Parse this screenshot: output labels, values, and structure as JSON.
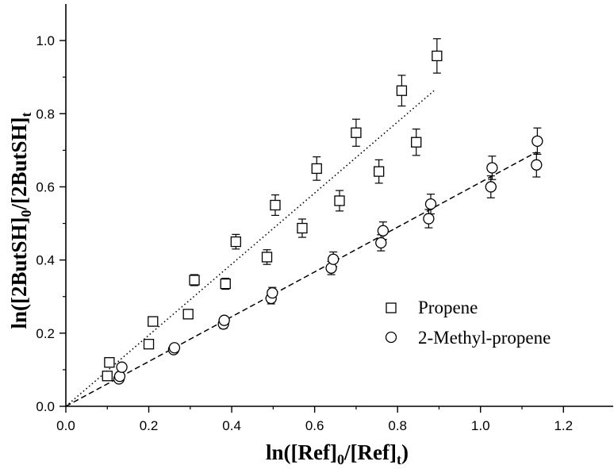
{
  "chart_data": {
    "type": "scatter",
    "xlabel": {
      "main": "ln([Ref]",
      "sub1": "0",
      "mid": "/[Ref]",
      "sub2": "t",
      "end": ")"
    },
    "ylabel": {
      "main": "ln([2ButSH]",
      "sub1": "0",
      "mid": "/[2ButSH]",
      "sub2": "t",
      "end": ""
    },
    "xlim": [
      0.0,
      1.32
    ],
    "ylim": [
      0.0,
      1.1
    ],
    "xticks": [
      "0.0",
      "0.2",
      "0.4",
      "0.6",
      "0.8",
      "1.0",
      "1.2"
    ],
    "yticks": [
      "0.0",
      "0.2",
      "0.4",
      "0.6",
      "0.8",
      "1.0"
    ],
    "grid": false,
    "legend_position": "right",
    "series": [
      {
        "name": "Propene",
        "marker": "square",
        "fit_line": "dotted",
        "fit": {
          "x": [
            0.0,
            0.89
          ],
          "y": [
            0.0,
            0.865
          ]
        },
        "points": [
          {
            "x": 0.1,
            "y": 0.083,
            "err": 0.012
          },
          {
            "x": 0.105,
            "y": 0.12,
            "err": 0.008
          },
          {
            "x": 0.2,
            "y": 0.17,
            "err": 0.0
          },
          {
            "x": 0.21,
            "y": 0.232,
            "err": 0.0
          },
          {
            "x": 0.295,
            "y": 0.252,
            "err": 0.0
          },
          {
            "x": 0.31,
            "y": 0.345,
            "err": 0.015
          },
          {
            "x": 0.385,
            "y": 0.335,
            "err": 0.015
          },
          {
            "x": 0.41,
            "y": 0.45,
            "err": 0.02
          },
          {
            "x": 0.485,
            "y": 0.408,
            "err": 0.02
          },
          {
            "x": 0.505,
            "y": 0.55,
            "err": 0.028
          },
          {
            "x": 0.57,
            "y": 0.487,
            "err": 0.025
          },
          {
            "x": 0.605,
            "y": 0.65,
            "err": 0.032
          },
          {
            "x": 0.66,
            "y": 0.562,
            "err": 0.028
          },
          {
            "x": 0.7,
            "y": 0.748,
            "err": 0.037
          },
          {
            "x": 0.755,
            "y": 0.642,
            "err": 0.032
          },
          {
            "x": 0.81,
            "y": 0.863,
            "err": 0.042
          },
          {
            "x": 0.845,
            "y": 0.722,
            "err": 0.036
          },
          {
            "x": 0.895,
            "y": 0.958,
            "err": 0.047
          }
        ]
      },
      {
        "name": "2-Methyl-propene",
        "marker": "circle",
        "fit_line": "dashed",
        "fit": {
          "x": [
            0.0,
            1.135
          ],
          "y": [
            0.0,
            0.695
          ]
        },
        "points": [
          {
            "x": 0.128,
            "y": 0.075,
            "err": 0.008
          },
          {
            "x": 0.13,
            "y": 0.082,
            "err": 0.0
          },
          {
            "x": 0.135,
            "y": 0.107,
            "err": 0.01
          },
          {
            "x": 0.26,
            "y": 0.155,
            "err": 0.008
          },
          {
            "x": 0.262,
            "y": 0.16,
            "err": 0.0
          },
          {
            "x": 0.38,
            "y": 0.225,
            "err": 0.012
          },
          {
            "x": 0.382,
            "y": 0.235,
            "err": 0.0
          },
          {
            "x": 0.495,
            "y": 0.295,
            "err": 0.015
          },
          {
            "x": 0.498,
            "y": 0.31,
            "err": 0.015
          },
          {
            "x": 0.64,
            "y": 0.378,
            "err": 0.018
          },
          {
            "x": 0.645,
            "y": 0.402,
            "err": 0.02
          },
          {
            "x": 0.76,
            "y": 0.447,
            "err": 0.022
          },
          {
            "x": 0.765,
            "y": 0.48,
            "err": 0.024
          },
          {
            "x": 0.875,
            "y": 0.513,
            "err": 0.025
          },
          {
            "x": 0.88,
            "y": 0.553,
            "err": 0.027
          },
          {
            "x": 1.025,
            "y": 0.6,
            "err": 0.03
          },
          {
            "x": 1.028,
            "y": 0.652,
            "err": 0.032
          },
          {
            "x": 1.135,
            "y": 0.66,
            "err": 0.033
          },
          {
            "x": 1.137,
            "y": 0.725,
            "err": 0.036
          }
        ]
      }
    ]
  }
}
